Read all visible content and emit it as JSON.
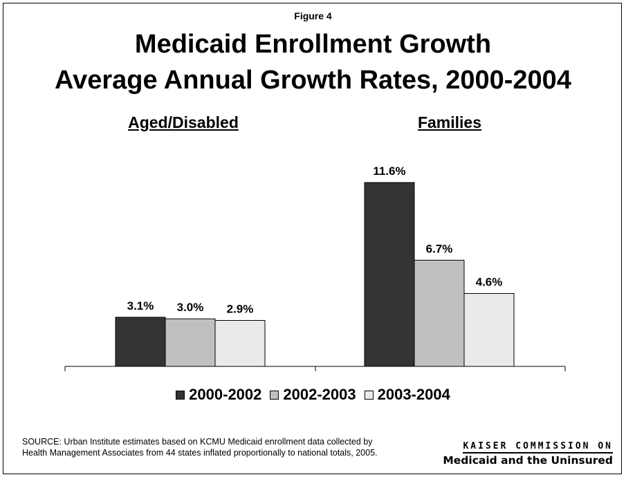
{
  "figure_label": "Figure 4",
  "title_line1": "Medicaid Enrollment Growth",
  "title_line2": "Average Annual Growth Rates, 2000-2004",
  "source": "SOURCE: Urban Institute estimates based on KCMU Medicaid enrollment data collected by Health Management Associates from 44 states inflated proportionally to national totals, 2005.",
  "logo": {
    "line1": "KAISER COMMISSION ON",
    "line2": "Medicaid and the Uninsured"
  },
  "colors": {
    "2000-2002": "#333333",
    "2002-2003": "#c0c0c0",
    "2003-2004": "#eaeaea"
  },
  "chart_data": {
    "type": "bar",
    "categories": [
      "Aged/Disabled",
      "Families"
    ],
    "series": [
      {
        "name": "2000-2002",
        "values": [
          3.1,
          11.6
        ],
        "labels": [
          "3.1%",
          "11.6%"
        ]
      },
      {
        "name": "2002-2003",
        "values": [
          3.0,
          6.7
        ],
        "labels": [
          "3.0%",
          "6.7%"
        ]
      },
      {
        "name": "2003-2004",
        "values": [
          2.9,
          4.6
        ],
        "labels": [
          "2.9%",
          "4.6%"
        ]
      }
    ],
    "unit": "%",
    "ylim": [
      0,
      11.6
    ],
    "grid": false,
    "legend_placement": "bottom"
  }
}
